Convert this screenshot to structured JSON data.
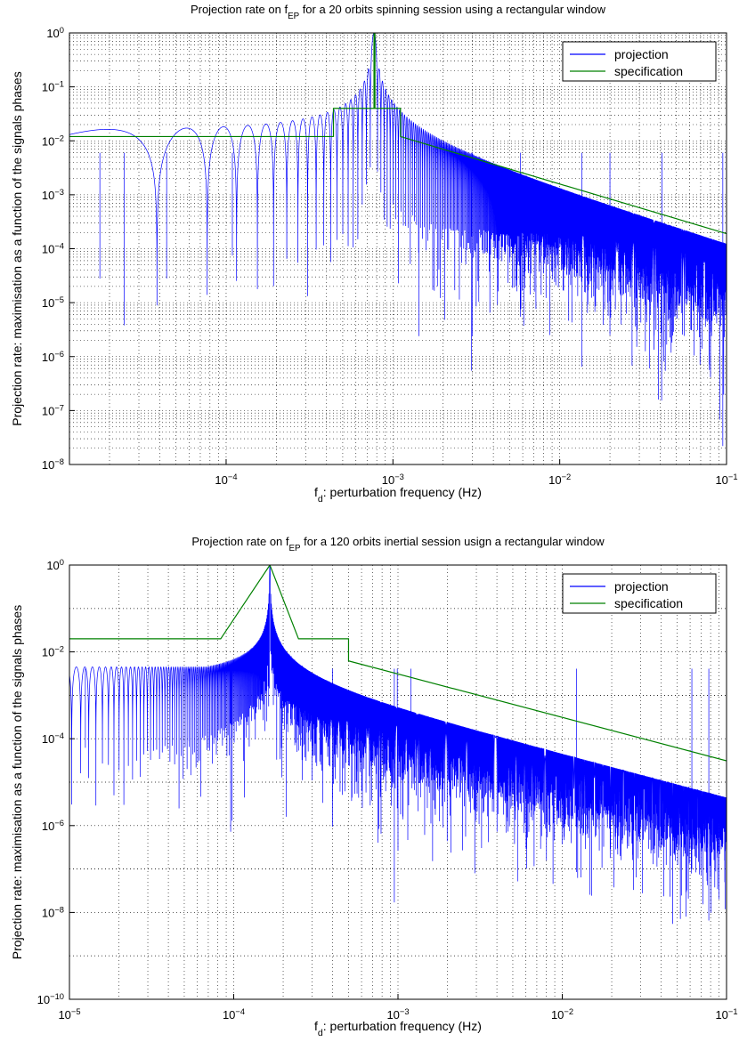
{
  "colors": {
    "projection": "#0000ff",
    "specification": "#008000"
  },
  "chart_data": [
    {
      "type": "line",
      "title": {
        "pre": "Projection rate on f",
        "sub": "EP",
        "post": " for a 20 orbits spinning session using a rectangular window"
      },
      "xlabel": {
        "pre": "f",
        "sub": "d",
        "post": ": perturbation frequency (Hz)"
      },
      "ylabel": "Projection rate: maximisation as a function of the signals phases",
      "xscale": "log",
      "yscale": "log",
      "xlim": [
        1.15e-05,
        0.1
      ],
      "ylim": [
        1e-08,
        1
      ],
      "xticks": [
        {
          "value": 0.0001,
          "base": "10",
          "exp": "−4"
        },
        {
          "value": 0.001,
          "base": "10",
          "exp": "−3"
        },
        {
          "value": 0.01,
          "base": "10",
          "exp": "−2"
        },
        {
          "value": 0.1,
          "base": "10",
          "exp": "−1"
        }
      ],
      "yticks": [
        {
          "value": 1,
          "base": "10",
          "exp": "0"
        },
        {
          "value": 0.1,
          "base": "10",
          "exp": "−1"
        },
        {
          "value": 0.01,
          "base": "10",
          "exp": "−2"
        },
        {
          "value": 0.001,
          "base": "10",
          "exp": "−3"
        },
        {
          "value": 0.0001,
          "base": "10",
          "exp": "−4"
        },
        {
          "value": 1e-05,
          "base": "10",
          "exp": "−5"
        },
        {
          "value": 1e-06,
          "base": "10",
          "exp": "−6"
        },
        {
          "value": 1e-07,
          "base": "10",
          "exp": "−7"
        },
        {
          "value": 1e-08,
          "base": "10",
          "exp": "−8"
        }
      ],
      "minor_ygrid": true,
      "grid": true,
      "legend": {
        "position": "top-right",
        "entries": [
          "projection",
          "specification"
        ]
      },
      "series": [
        {
          "name": "projection",
          "kind": "sinc",
          "f0": 0.00077,
          "df": 3.85e-05,
          "peak": 1,
          "envelope_near": 0.0065,
          "deep_nulls": [
            [
              1.75e-05,
              2.8e-05
            ],
            [
              2.45e-05,
              3.8e-06
            ],
            [
              4.4e-05,
              2.8e-05
            ],
            [
              0.000109,
              7.5e-05
            ],
            [
              0.00143,
              2.4e-06
            ],
            [
              0.00295,
              5.5e-07
            ],
            [
              0.003,
              2.4e-06
            ],
            [
              0.0058,
              5.5e-06
            ],
            [
              0.0136,
              6.5e-07
            ],
            [
              0.02,
              2.5e-06
            ],
            [
              0.041,
              1.5e-06
            ],
            [
              0.095,
              2.2e-08
            ]
          ]
        },
        {
          "name": "specification",
          "points": [
            [
              1.15e-05,
              0.012
            ],
            [
              0.00044,
              0.012
            ],
            [
              0.00044,
              0.04
            ],
            [
              0.00077,
              0.04
            ],
            [
              0.00077,
              1
            ],
            [
              0.00078,
              1
            ],
            [
              0.00078,
              0.04
            ],
            [
              0.00111,
              0.04
            ],
            [
              0.00111,
              0.012
            ],
            [
              0.1,
              0.00019
            ]
          ]
        }
      ]
    },
    {
      "type": "line",
      "title": {
        "pre": "Projection rate on f",
        "sub": "EP",
        "post": " for a 120 orbits inertial session usign a rectangular window"
      },
      "xlabel": {
        "pre": "f",
        "sub": "d",
        "post": ": perturbation frequency (Hz)"
      },
      "ylabel": "Projection rate: maximisation as a function of the signals phases",
      "xscale": "log",
      "yscale": "log",
      "xlim": [
        1e-05,
        0.1
      ],
      "ylim": [
        1e-10,
        1
      ],
      "xticks": [
        {
          "value": 1e-05,
          "base": "10",
          "exp": "−5"
        },
        {
          "value": 0.0001,
          "base": "10",
          "exp": "−4"
        },
        {
          "value": 0.001,
          "base": "10",
          "exp": "−3"
        },
        {
          "value": 0.01,
          "base": "10",
          "exp": "−2"
        },
        {
          "value": 0.1,
          "base": "10",
          "exp": "−1"
        }
      ],
      "yticks": [
        {
          "value": 1,
          "base": "10",
          "exp": "0"
        },
        {
          "value": 0.01,
          "base": "10",
          "exp": "−2"
        },
        {
          "value": 0.0001,
          "base": "10",
          "exp": "−4"
        },
        {
          "value": 1e-06,
          "base": "10",
          "exp": "−6"
        },
        {
          "value": 1e-08,
          "base": "10",
          "exp": "−8"
        },
        {
          "value": 1e-10,
          "base": "10",
          "exp": "−10"
        }
      ],
      "minor_ygrid": false,
      "grid": true,
      "legend": {
        "position": "top-right",
        "entries": [
          "projection",
          "specification"
        ]
      },
      "series": [
        {
          "name": "projection",
          "kind": "sinc",
          "f0": 0.000166,
          "df": 1.39e-06,
          "peak": 1,
          "envelope_near": 0.0045,
          "deep_nulls": [
            [
              1.25e-05,
              6.2e-05
            ],
            [
              5.35e-05,
              6.5e-05
            ],
            [
              9.58e-05,
              7.2e-07
            ],
            [
              9.75e-05,
              1.3e-06
            ],
            [
              0.000209,
              1.6e-06
            ],
            [
              0.000399,
              4.1e-06
            ],
            [
              0.00095,
              1.7e-08
            ],
            [
              0.00099,
              2.5e-06
            ],
            [
              0.0012,
              3.6e-05
            ],
            [
              0.0122,
              8.5e-08
            ],
            [
              0.0615,
              1e-07
            ],
            [
              0.078,
              6.5e-09
            ]
          ]
        },
        {
          "name": "specification",
          "points": [
            [
              1e-05,
              0.02
            ],
            [
              8.33e-05,
              0.02
            ],
            [
              0.000166,
              1
            ],
            [
              0.000248,
              0.02
            ],
            [
              0.0005,
              0.02
            ],
            [
              0.0005,
              0.0062
            ],
            [
              0.1,
              3.1e-05
            ]
          ]
        }
      ]
    }
  ]
}
